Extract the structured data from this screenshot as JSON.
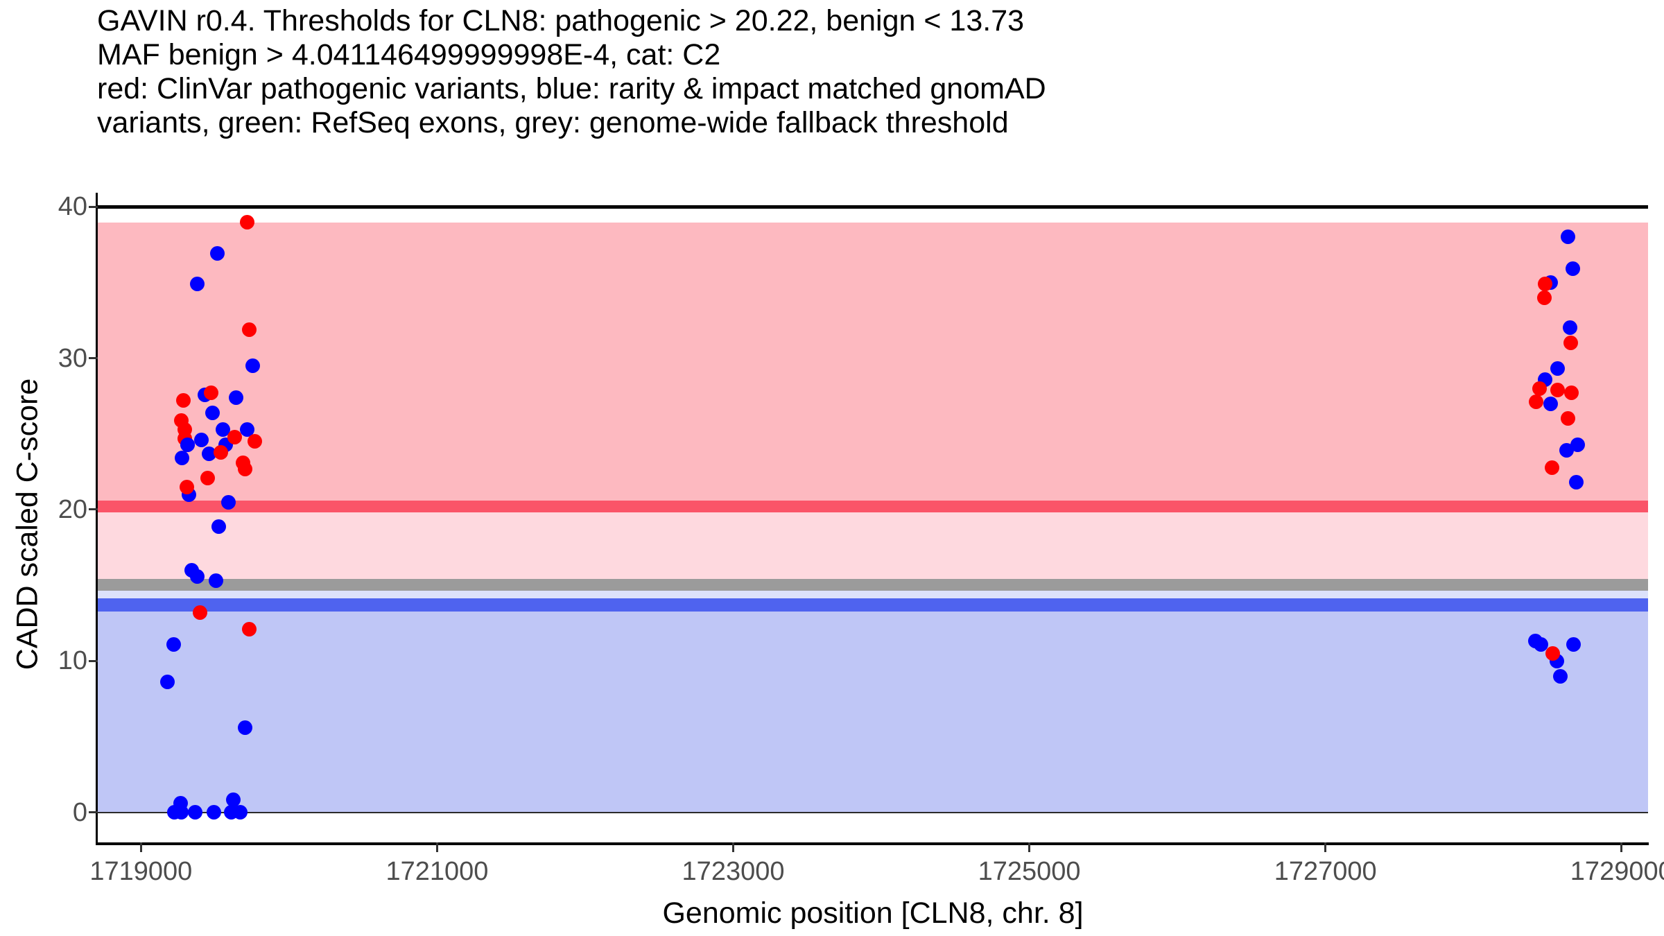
{
  "chart_data": {
    "type": "scatter",
    "title_lines": [
      "GAVIN r0.4. Thresholds for CLN8: pathogenic > 20.22, benign < 13.73",
      "MAF benign > 4.041146499999998E-4, cat: C2",
      "red: ClinVar pathogenic variants, blue: rarity & impact matched gnomAD",
      "variants, green: RefSeq exons, grey: genome-wide fallback threshold"
    ],
    "xlabel": "Genomic position [CLN8, chr. 8]",
    "ylabel": "CADD scaled C-score",
    "x_ticks": [
      1719000,
      1721000,
      1723000,
      1725000,
      1727000,
      1729000
    ],
    "y_ticks": [
      0,
      10,
      20,
      30,
      40
    ],
    "x_range": [
      1718708,
      1729179
    ],
    "y_range": [
      -1.98,
      40.01
    ],
    "thresholds": {
      "pathogenic": 20.22,
      "benign": 13.73,
      "genome_wide_fallback": 15,
      "maf_benign": "4.041146499999998E-4",
      "category": "C2",
      "gene": "CLN8",
      "chromosome": "8"
    },
    "bands": [
      {
        "name": "pathogenic-region",
        "from": 20.61,
        "to": 38.97,
        "color": "#FDB9C0"
      },
      {
        "name": "pathogenic-threshold-line",
        "from": 19.8,
        "to": 20.61,
        "color": "#FA5468"
      },
      {
        "name": "intermediate-region",
        "from": 15.4,
        "to": 19.8,
        "color": "#FED9DF"
      },
      {
        "name": "fallback-threshold-band",
        "from": 14.64,
        "to": 15.4,
        "color": "#9B9B9B"
      },
      {
        "name": "pale-blue-gap",
        "from": 14.12,
        "to": 14.64,
        "color": "#DCE1FB"
      },
      {
        "name": "benign-threshold-line",
        "from": 13.28,
        "to": 14.12,
        "color": "#4F63EF"
      },
      {
        "name": "benign-region",
        "from": 0.0,
        "to": 13.28,
        "color": "#BFC6F6"
      }
    ],
    "zero_line_color": "#2b2b2b",
    "top_line_color": "#000000",
    "series": [
      {
        "name": "rarity & impact matched gnomAD variants",
        "color": "#0000FF",
        "points": [
          [
            1719517,
            36.9
          ],
          [
            1719381,
            34.9
          ],
          [
            1719753,
            29.5
          ],
          [
            1719433,
            27.6
          ],
          [
            1719643,
            27.4
          ],
          [
            1719481,
            26.4
          ],
          [
            1719554,
            25.3
          ],
          [
            1719715,
            25.3
          ],
          [
            1719409,
            24.6
          ],
          [
            1719316,
            24.3
          ],
          [
            1719570,
            24.3
          ],
          [
            1719461,
            23.7
          ],
          [
            1719278,
            23.4
          ],
          [
            1719325,
            21.0
          ],
          [
            1719593,
            20.5
          ],
          [
            1719526,
            18.9
          ],
          [
            1719344,
            16.0
          ],
          [
            1719379,
            15.6
          ],
          [
            1719508,
            15.3
          ],
          [
            1719219,
            11.1
          ],
          [
            1719180,
            8.6
          ],
          [
            1719703,
            5.6
          ],
          [
            1719227,
            0.0
          ],
          [
            1719274,
            0.0
          ],
          [
            1719367,
            0.0
          ],
          [
            1719492,
            0.0
          ],
          [
            1719609,
            0.0
          ],
          [
            1719672,
            0.0
          ],
          [
            1719266,
            0.6
          ],
          [
            1719625,
            0.85
          ],
          [
            1728636,
            38.0
          ],
          [
            1728672,
            35.9
          ],
          [
            1728520,
            35.0
          ],
          [
            1728653,
            32.0
          ],
          [
            1728566,
            29.3
          ],
          [
            1728484,
            28.6
          ],
          [
            1728523,
            27.0
          ],
          [
            1728704,
            24.3
          ],
          [
            1728629,
            23.9
          ],
          [
            1728696,
            21.8
          ],
          [
            1728419,
            11.3
          ],
          [
            1728457,
            11.1
          ],
          [
            1728674,
            11.1
          ],
          [
            1728563,
            10.0
          ],
          [
            1728585,
            9.0
          ]
        ],
        "front_points": [
          [
            1719316,
            24.3
          ]
        ]
      },
      {
        "name": "ClinVar pathogenic variants",
        "color": "#FF0000",
        "points": [
          [
            1719718,
            39.0
          ],
          [
            1719729,
            31.9
          ],
          [
            1719473,
            27.7
          ],
          [
            1719286,
            27.2
          ],
          [
            1719274,
            25.9
          ],
          [
            1719294,
            25.3
          ],
          [
            1719635,
            24.8
          ],
          [
            1719297,
            24.7
          ],
          [
            1719768,
            24.5
          ],
          [
            1719539,
            23.8
          ],
          [
            1719687,
            23.1
          ],
          [
            1719703,
            22.7
          ],
          [
            1719448,
            22.1
          ],
          [
            1719309,
            21.5
          ],
          [
            1719398,
            13.2
          ],
          [
            1719729,
            12.1
          ],
          [
            1728484,
            34.9
          ],
          [
            1728479,
            34.0
          ],
          [
            1728656,
            31.0
          ],
          [
            1728448,
            28.0
          ],
          [
            1728570,
            27.9
          ],
          [
            1728661,
            27.7
          ],
          [
            1728422,
            27.1
          ],
          [
            1728636,
            26.0
          ],
          [
            1728530,
            22.75
          ],
          [
            1728535,
            10.5
          ]
        ],
        "front_points": []
      }
    ]
  }
}
